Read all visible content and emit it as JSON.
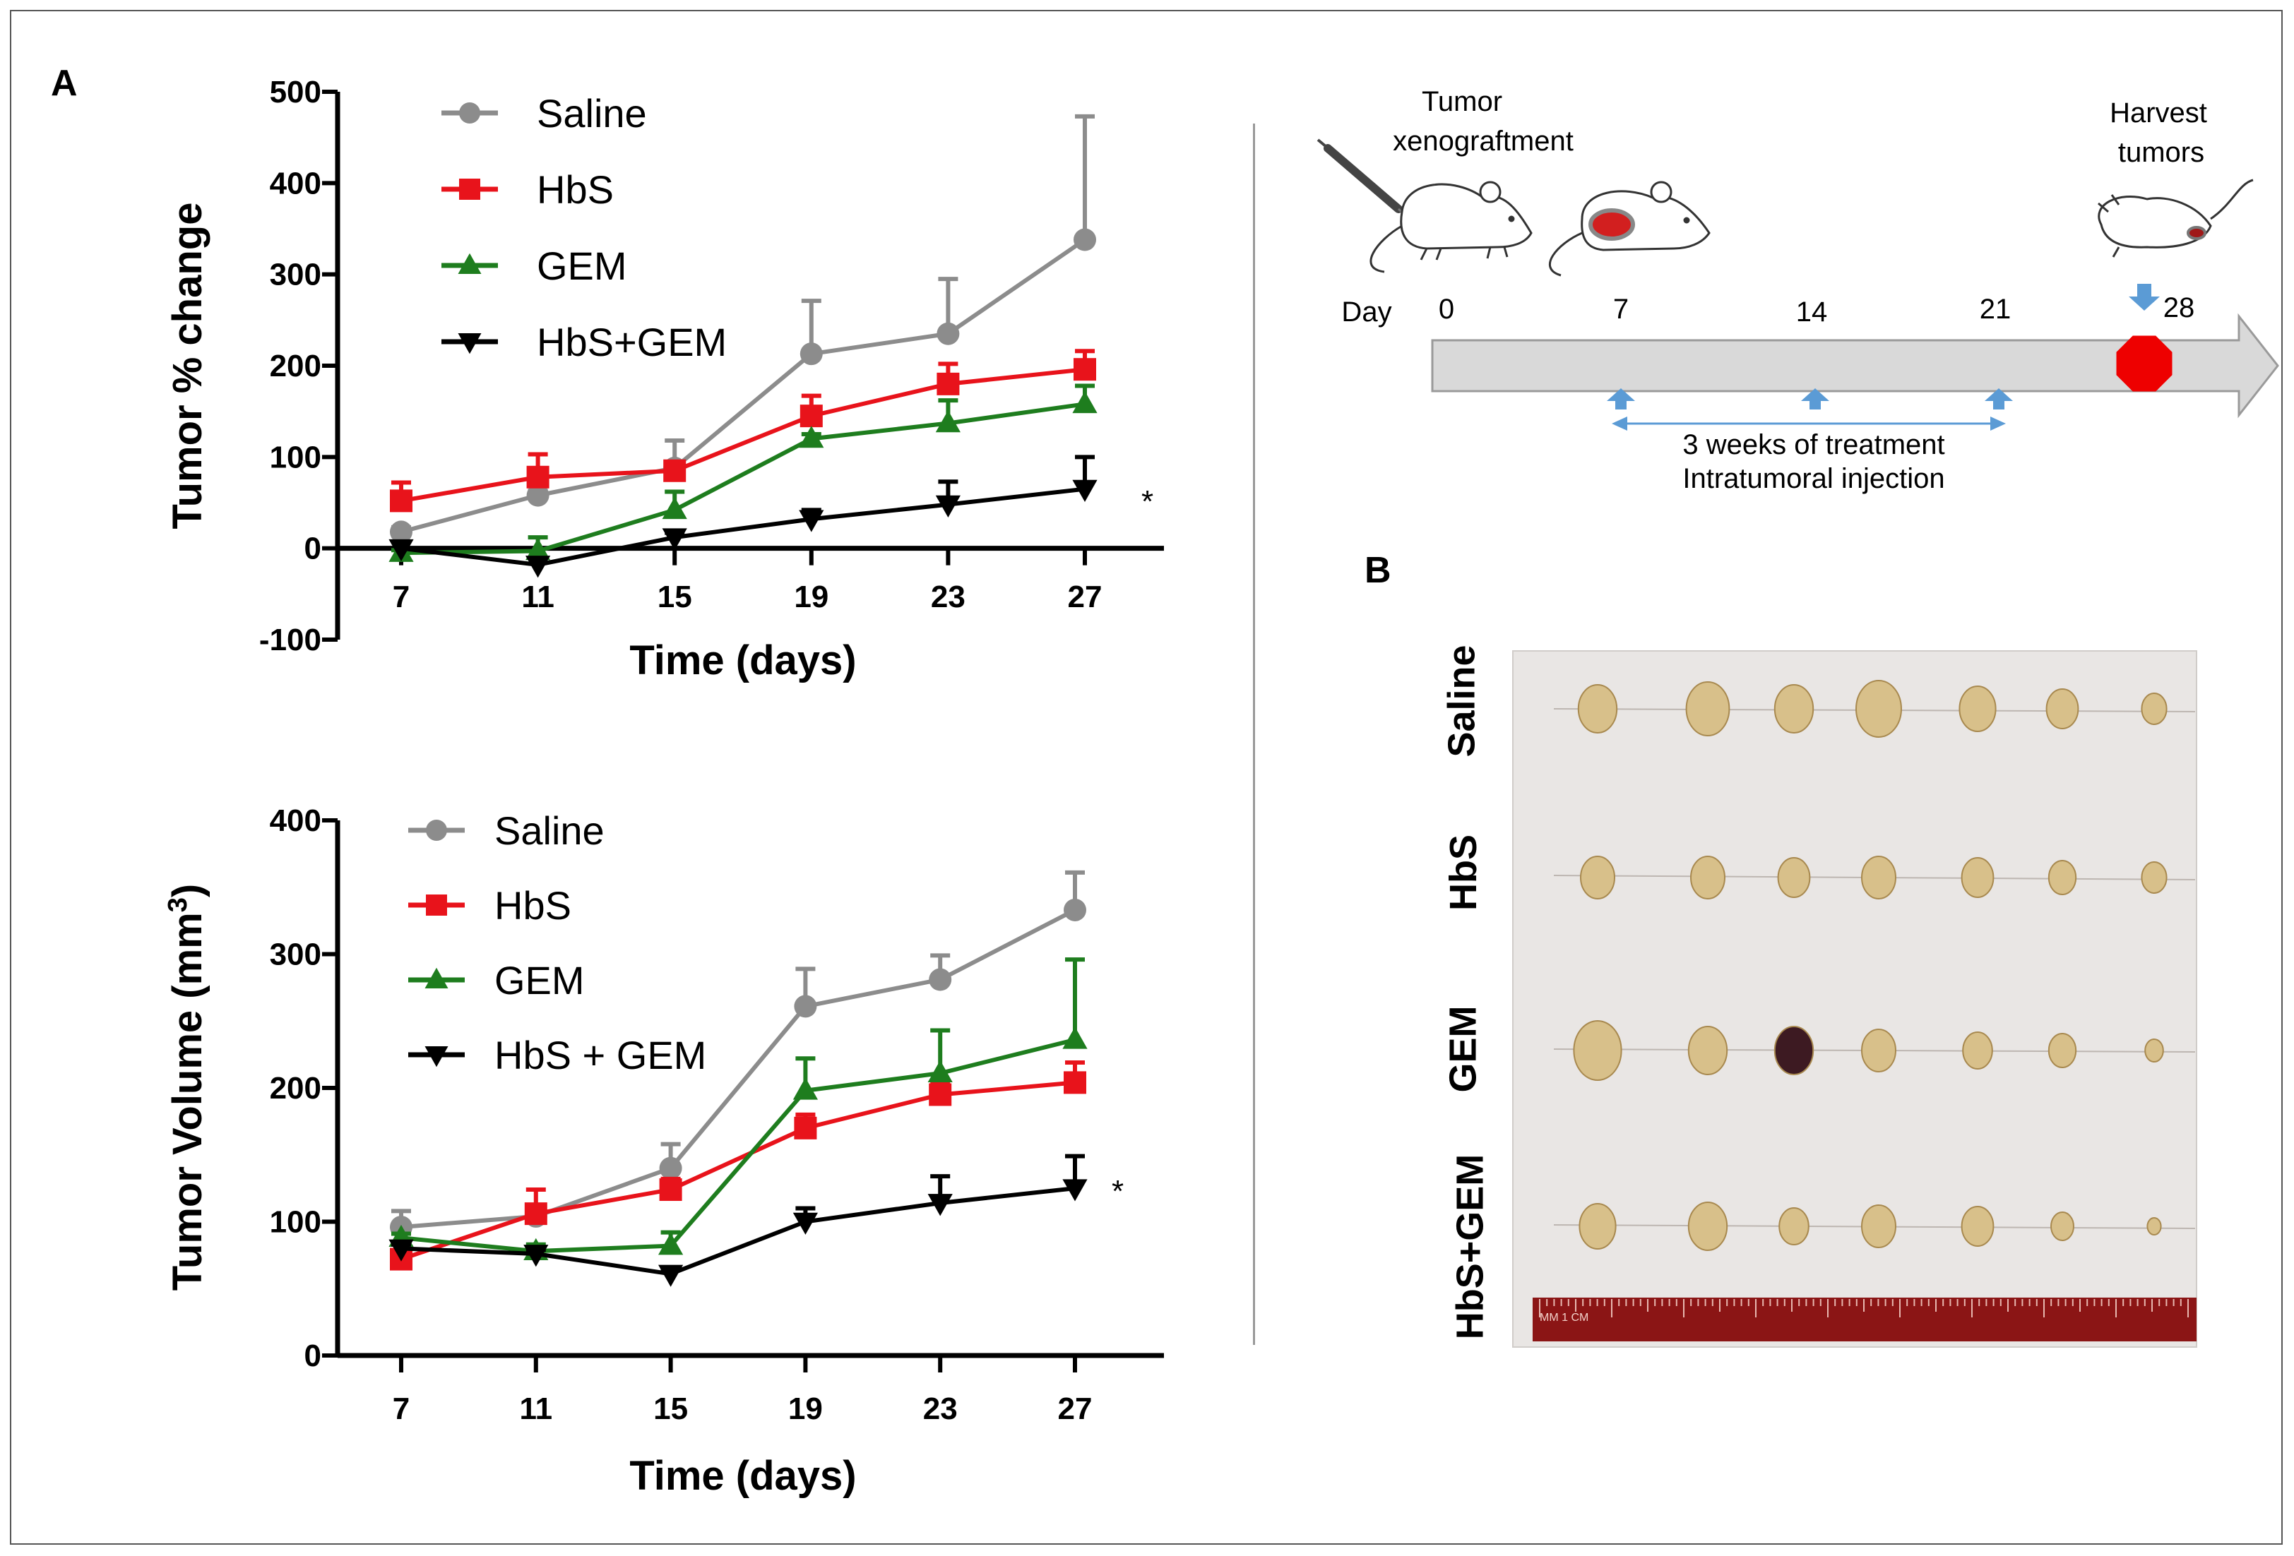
{
  "panels": {
    "a": "A",
    "b": "B"
  },
  "colors": {
    "saline": "#8c8c8c",
    "hbs": "#e8131b",
    "gem": "#1e7d1e",
    "combo": "#000000",
    "stop": "#ee0000",
    "arrow": "#5b9bd5"
  },
  "chart_data": [
    {
      "type": "line",
      "ylabel": "Tumor % change",
      "xlabel": "Time (days)",
      "x": [
        7,
        11,
        15,
        19,
        23,
        27
      ],
      "xticks": [
        "7",
        "11",
        "15",
        "19",
        "23",
        "27"
      ],
      "ylim": [
        -100,
        500
      ],
      "yticks": [
        "-100",
        "0",
        "100",
        "200",
        "300",
        "400",
        "500"
      ],
      "series": [
        {
          "name": "Saline",
          "marker": "circle",
          "values": [
            18,
            58,
            88,
            213,
            235,
            338
          ],
          "err": [
            5,
            5,
            30,
            58,
            60,
            135
          ]
        },
        {
          "name": "HbS",
          "marker": "square",
          "values": [
            52,
            78,
            85,
            145,
            180,
            196
          ],
          "err": [
            20,
            25,
            8,
            22,
            22,
            20
          ]
        },
        {
          "name": "GEM",
          "marker": "triangle",
          "values": [
            -5,
            -3,
            42,
            120,
            137,
            158
          ],
          "err": [
            3,
            15,
            20,
            5,
            25,
            20
          ]
        },
        {
          "name": "HbS+GEM",
          "marker": "triangle-down",
          "values": [
            0,
            -18,
            12,
            32,
            48,
            65
          ],
          "err": [
            0,
            0,
            5,
            10,
            25,
            35
          ]
        }
      ],
      "annotation": "*"
    },
    {
      "type": "line",
      "ylabel": "Tumor Volume (mm",
      "ylabel_sup": "3",
      "ylabel_end": ")",
      "xlabel": "Time (days)",
      "x": [
        7,
        11,
        15,
        19,
        23,
        27
      ],
      "xticks": [
        "7",
        "11",
        "15",
        "19",
        "23",
        "27"
      ],
      "ylim": [
        0,
        400
      ],
      "yticks": [
        "0",
        "100",
        "200",
        "300",
        "400"
      ],
      "series": [
        {
          "name": "Saline",
          "marker": "circle",
          "values": [
            96,
            104,
            140,
            261,
            281,
            333
          ],
          "err": [
            12,
            5,
            18,
            28,
            18,
            28
          ]
        },
        {
          "name": "HbS",
          "marker": "square",
          "values": [
            72,
            106,
            124,
            170,
            195,
            204
          ],
          "err": [
            5,
            18,
            8,
            10,
            8,
            15
          ]
        },
        {
          "name": "GEM",
          "marker": "triangle",
          "values": [
            88,
            78,
            82,
            198,
            211,
            236
          ],
          "err": [
            3,
            5,
            10,
            24,
            32,
            60
          ]
        },
        {
          "name": "HbS + GEM",
          "marker": "triangle-down",
          "values": [
            80,
            76,
            61,
            100,
            114,
            125
          ],
          "err": [
            3,
            3,
            3,
            10,
            20,
            24
          ]
        }
      ],
      "annotation": "*"
    }
  ],
  "timeline": {
    "xenograft_label": [
      "Tumor",
      "xenograftment"
    ],
    "harvest_label": [
      "Harvest",
      "tumors"
    ],
    "day_label": "Day",
    "days": [
      "0",
      "7",
      "14",
      "21",
      "28"
    ],
    "treatment_line1": "3 weeks of treatment",
    "treatment_line2": "Intratumoral injection"
  },
  "photo": {
    "row_labels": [
      "Saline",
      "HbS",
      "GEM",
      "HbS+GEM"
    ],
    "ruler_label": "MM 1 CM"
  }
}
